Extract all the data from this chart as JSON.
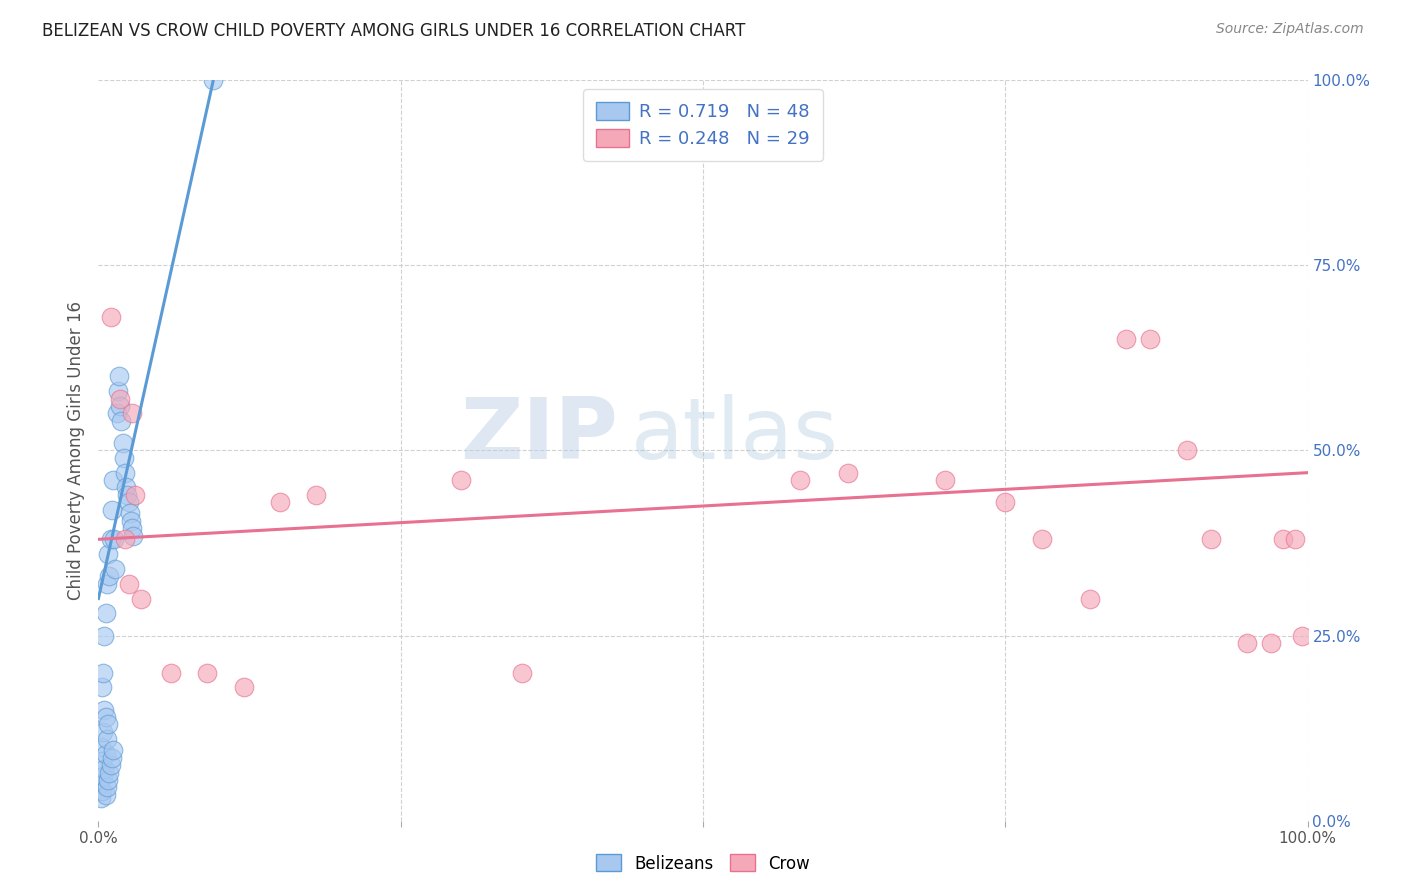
{
  "title": "BELIZEAN VS CROW CHILD POVERTY AMONG GIRLS UNDER 16 CORRELATION CHART",
  "source": "Source: ZipAtlas.com",
  "ylabel": "Child Poverty Among Girls Under 16",
  "xlim": [
    0,
    1.0
  ],
  "ylim": [
    0,
    1.0
  ],
  "belizean_scatter_x": [
    0.001,
    0.002,
    0.002,
    0.003,
    0.003,
    0.003,
    0.004,
    0.004,
    0.004,
    0.005,
    0.005,
    0.005,
    0.006,
    0.006,
    0.006,
    0.006,
    0.007,
    0.007,
    0.007,
    0.008,
    0.008,
    0.008,
    0.009,
    0.009,
    0.01,
    0.01,
    0.011,
    0.011,
    0.012,
    0.012,
    0.013,
    0.014,
    0.015,
    0.016,
    0.017,
    0.018,
    0.019,
    0.02,
    0.021,
    0.022,
    0.023,
    0.024,
    0.025,
    0.026,
    0.027,
    0.028,
    0.029,
    0.095
  ],
  "belizean_scatter_y": [
    0.05,
    0.03,
    0.1,
    0.04,
    0.08,
    0.18,
    0.06,
    0.12,
    0.2,
    0.07,
    0.15,
    0.25,
    0.035,
    0.09,
    0.14,
    0.28,
    0.045,
    0.11,
    0.32,
    0.055,
    0.13,
    0.36,
    0.065,
    0.33,
    0.075,
    0.38,
    0.085,
    0.42,
    0.095,
    0.46,
    0.38,
    0.34,
    0.55,
    0.58,
    0.6,
    0.56,
    0.54,
    0.51,
    0.49,
    0.47,
    0.45,
    0.44,
    0.43,
    0.415,
    0.405,
    0.395,
    0.385,
    1.0
  ],
  "crow_scatter_x": [
    0.01,
    0.018,
    0.022,
    0.025,
    0.028,
    0.03,
    0.035,
    0.06,
    0.09,
    0.12,
    0.15,
    0.18,
    0.3,
    0.35,
    0.58,
    0.62,
    0.7,
    0.75,
    0.78,
    0.82,
    0.85,
    0.87,
    0.9,
    0.92,
    0.95,
    0.97,
    0.98,
    0.99,
    0.995
  ],
  "crow_scatter_y": [
    0.68,
    0.57,
    0.38,
    0.32,
    0.55,
    0.44,
    0.3,
    0.2,
    0.2,
    0.18,
    0.43,
    0.44,
    0.46,
    0.2,
    0.46,
    0.47,
    0.46,
    0.43,
    0.38,
    0.3,
    0.65,
    0.65,
    0.5,
    0.38,
    0.24,
    0.24,
    0.38,
    0.38,
    0.25
  ],
  "blue_line_x": [
    0.0,
    0.095
  ],
  "blue_line_y": [
    0.3,
    1.0
  ],
  "pink_line_x": [
    0.0,
    1.0
  ],
  "pink_line_y": [
    0.38,
    0.47
  ],
  "blue_color": "#5b9bd5",
  "pink_color": "#e87090",
  "scatter_blue": "#a8c8f0",
  "scatter_pink": "#f5a8b8",
  "grid_color": "#cccccc",
  "background_color": "#ffffff",
  "title_color": "#222222",
  "source_color": "#888888",
  "axis_label_color": "#555555",
  "right_tick_color": "#4472c4",
  "legend_label_blue": "R = 0.719   N = 48",
  "legend_label_pink": "R = 0.248   N = 29",
  "bottom_legend_1": "Belizeans",
  "bottom_legend_2": "Crow",
  "watermark_zip": "ZIP",
  "watermark_atlas": "atlas"
}
